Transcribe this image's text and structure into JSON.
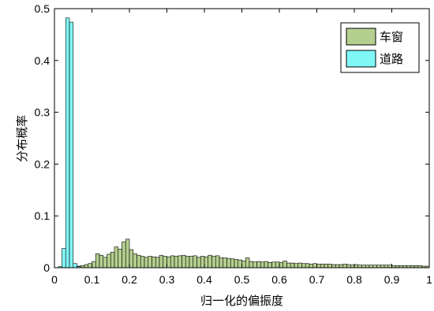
{
  "chart_data": {
    "type": "bar",
    "xlabel": "归一化的偏振度",
    "ylabel": "分布概率",
    "xlim": [
      0,
      1
    ],
    "ylim": [
      0,
      0.5
    ],
    "xticks": [
      "0",
      "0.1",
      "0.2",
      "0.3",
      "0.4",
      "0.5",
      "0.6",
      "0.7",
      "0.8",
      "0.9",
      "1"
    ],
    "yticks": [
      "0",
      "0.1",
      "0.2",
      "0.3",
      "0.4",
      "0.5"
    ],
    "grid": false,
    "legend_position": "top-right",
    "bin_width": 0.01,
    "series": [
      {
        "name": "车窗",
        "color": "#b5cf8f",
        "x": [
          0.015,
          0.025,
          0.035,
          0.045,
          0.055,
          0.065,
          0.075,
          0.085,
          0.095,
          0.105,
          0.115,
          0.125,
          0.135,
          0.145,
          0.155,
          0.165,
          0.175,
          0.185,
          0.195,
          0.205,
          0.215,
          0.225,
          0.235,
          0.245,
          0.255,
          0.265,
          0.275,
          0.285,
          0.295,
          0.305,
          0.315,
          0.325,
          0.335,
          0.345,
          0.355,
          0.365,
          0.375,
          0.385,
          0.395,
          0.405,
          0.415,
          0.425,
          0.435,
          0.445,
          0.455,
          0.465,
          0.475,
          0.485,
          0.495,
          0.505,
          0.515,
          0.525,
          0.535,
          0.545,
          0.555,
          0.565,
          0.575,
          0.585,
          0.595,
          0.605,
          0.615,
          0.625,
          0.635,
          0.645,
          0.655,
          0.665,
          0.675,
          0.685,
          0.695,
          0.705,
          0.715,
          0.725,
          0.735,
          0.745,
          0.755,
          0.765,
          0.775,
          0.785,
          0.795,
          0.805,
          0.815,
          0.825,
          0.835,
          0.845,
          0.855,
          0.865,
          0.875,
          0.885,
          0.895,
          0.905,
          0.915,
          0.925,
          0.935,
          0.945,
          0.955,
          0.965,
          0.975,
          0.985,
          0.995
        ],
        "values": [
          0.0,
          0.001,
          0.001,
          0.002,
          0.002,
          0.003,
          0.004,
          0.006,
          0.008,
          0.012,
          0.027,
          0.024,
          0.02,
          0.026,
          0.03,
          0.04,
          0.036,
          0.05,
          0.055,
          0.035,
          0.027,
          0.024,
          0.022,
          0.02,
          0.022,
          0.021,
          0.02,
          0.024,
          0.022,
          0.021,
          0.023,
          0.022,
          0.023,
          0.024,
          0.022,
          0.022,
          0.023,
          0.02,
          0.022,
          0.021,
          0.024,
          0.022,
          0.023,
          0.019,
          0.019,
          0.018,
          0.017,
          0.016,
          0.015,
          0.013,
          0.019,
          0.012,
          0.011,
          0.012,
          0.011,
          0.012,
          0.01,
          0.011,
          0.011,
          0.01,
          0.013,
          0.009,
          0.009,
          0.008,
          0.009,
          0.008,
          0.008,
          0.007,
          0.008,
          0.007,
          0.007,
          0.007,
          0.007,
          0.006,
          0.006,
          0.006,
          0.007,
          0.006,
          0.005,
          0.006,
          0.005,
          0.005,
          0.005,
          0.005,
          0.005,
          0.005,
          0.005,
          0.005,
          0.005,
          0.004,
          0.004,
          0.004,
          0.004,
          0.004,
          0.004,
          0.004,
          0.004,
          0.003,
          0.003
        ]
      },
      {
        "name": "道路",
        "color": "#80f7f7",
        "x": [
          0.015,
          0.025,
          0.035,
          0.045,
          0.055,
          0.065
        ],
        "values": [
          0.002,
          0.037,
          0.482,
          0.474,
          0.008,
          0.002
        ]
      }
    ]
  }
}
